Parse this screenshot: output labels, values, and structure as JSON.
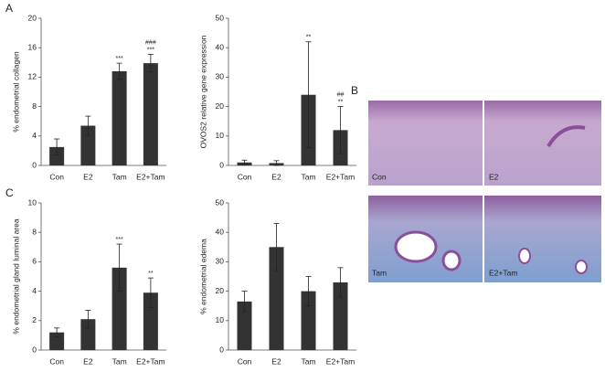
{
  "panel_labels": [
    "A",
    "B",
    "C"
  ],
  "micrograph_labels": [
    "Con",
    "E2",
    "Tam",
    "E2+Tam"
  ],
  "chart_data": [
    {
      "type": "bar",
      "y_label": "% endometrial collagen",
      "categories": [
        "Con",
        "E2",
        "Tam",
        "E2+Tam"
      ],
      "values": [
        2.5,
        5.4,
        12.8,
        13.9
      ],
      "errors": [
        1.1,
        1.3,
        1.1,
        1.2
      ],
      "color": "#333333",
      "significance": [
        null,
        null,
        "***",
        "***"
      ],
      "comparison_marks": [
        null,
        null,
        null,
        "###"
      ],
      "ylim": [
        0,
        20
      ],
      "yticks": [
        0,
        4,
        8,
        12,
        16,
        20
      ]
    },
    {
      "type": "bar",
      "y_label": "OVOS2 relative gene expression",
      "categories": [
        "Con",
        "E2",
        "Tam",
        "E2+Tam"
      ],
      "values": [
        1,
        0.8,
        24,
        12
      ],
      "errors": [
        0.8,
        0.8,
        18,
        8
      ],
      "color": "#333333",
      "significance": [
        null,
        null,
        "**",
        "**"
      ],
      "comparison_marks": [
        null,
        null,
        null,
        "##"
      ],
      "ylim": [
        0,
        50
      ],
      "yticks": [
        0,
        10,
        20,
        30,
        40,
        50
      ]
    },
    {
      "type": "bar",
      "y_label": "% endometrial gland luminal area",
      "categories": [
        "Con",
        "E2",
        "Tam",
        "E2+Tam"
      ],
      "values": [
        1.2,
        2.1,
        5.6,
        3.9
      ],
      "errors": [
        0.3,
        0.6,
        1.6,
        1.0
      ],
      "color": "#333333",
      "significance": [
        null,
        null,
        "***",
        "**"
      ],
      "comparison_marks": [
        null,
        null,
        null,
        null
      ],
      "ylim": [
        0,
        10
      ],
      "yticks": [
        0,
        2,
        4,
        6,
        8,
        10
      ]
    },
    {
      "type": "bar",
      "y_label": "% endometrial edema",
      "categories": [
        "Con",
        "E2",
        "Tam",
        "E2+Tam"
      ],
      "values": [
        16.5,
        35,
        20,
        23
      ],
      "errors": [
        3.5,
        8,
        5,
        5
      ],
      "color": "#333333",
      "significance": [
        null,
        null,
        null,
        null
      ],
      "comparison_marks": [
        null,
        null,
        null,
        null
      ],
      "ylim": [
        0,
        50
      ],
      "yticks": [
        0,
        10,
        20,
        30,
        40,
        50
      ]
    }
  ]
}
